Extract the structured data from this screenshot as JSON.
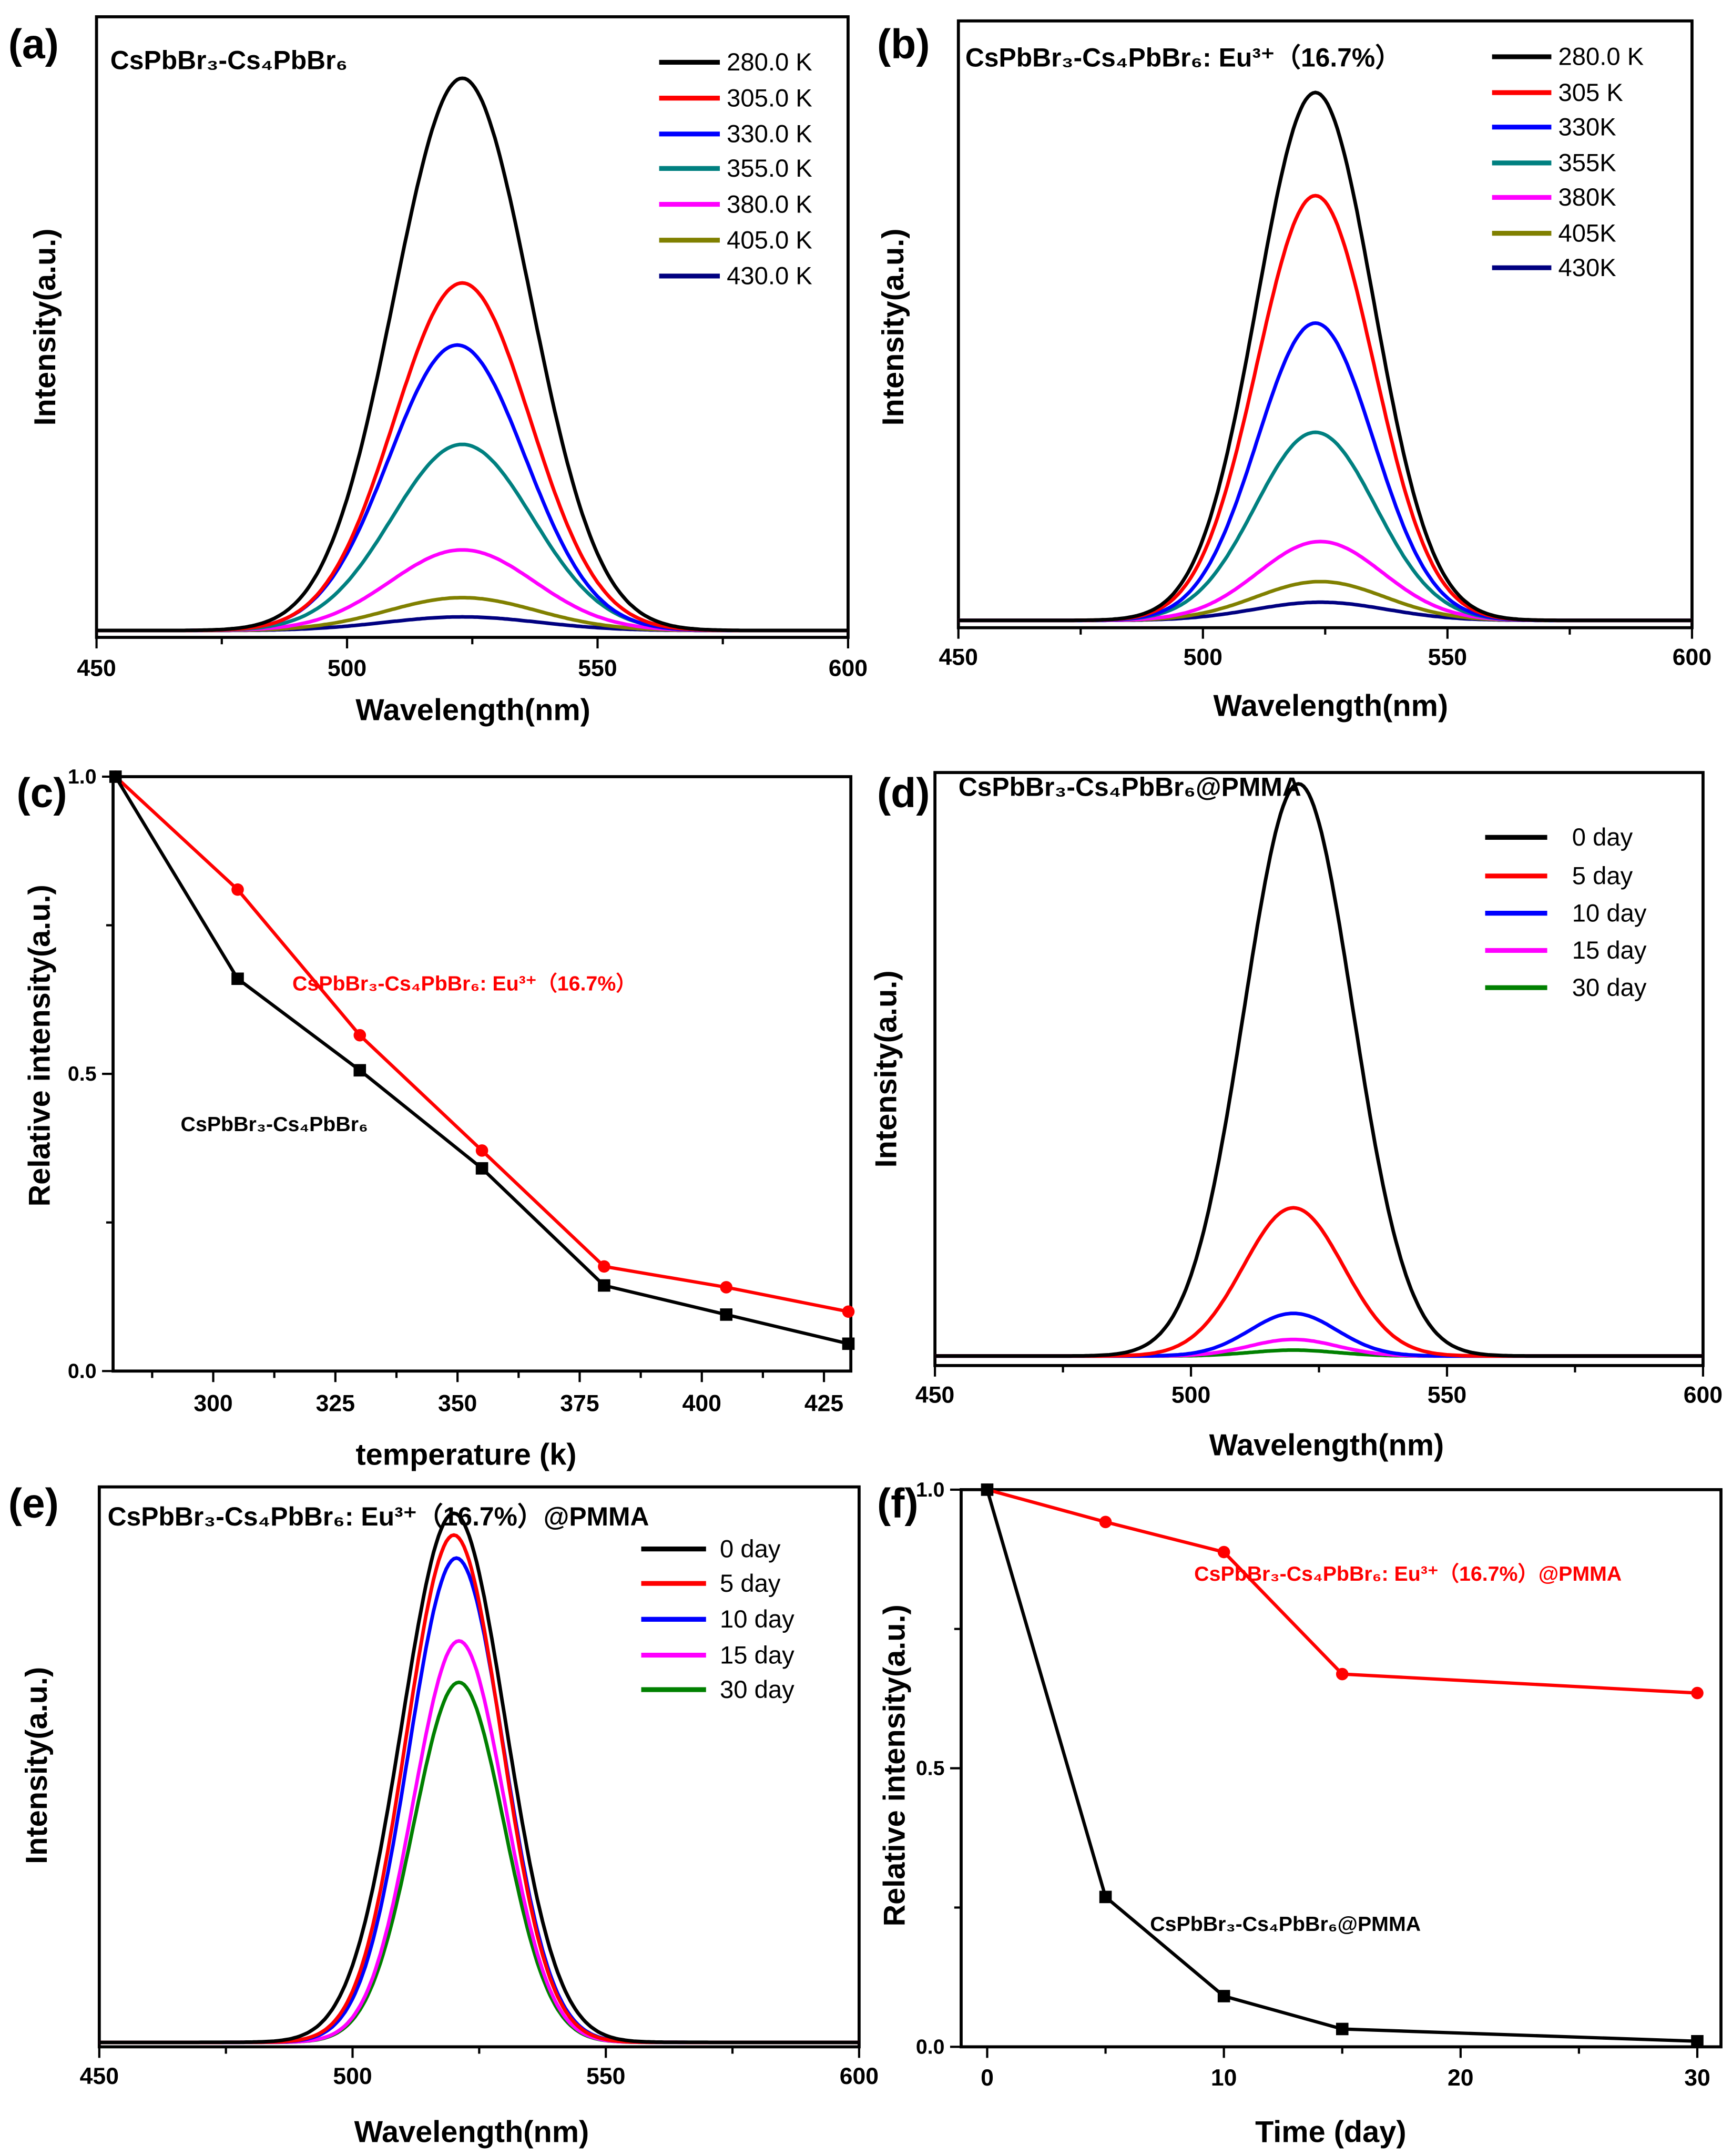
{
  "chart_data": [
    {
      "panel": "(a)",
      "type": "line",
      "title": "CsPbBr₃-Cs₄PbBr₆",
      "xlabel": "Wavelength(nm)",
      "ylabel": "Intensity(a.u.)",
      "xlim": [
        450,
        600
      ],
      "ylim": [
        0,
        1
      ],
      "xticks": [
        450,
        500,
        550,
        600
      ],
      "xminor": 25,
      "yticks": [],
      "series": [
        {
          "name": "280.0 K",
          "color": "#000000",
          "peak_nm": 523,
          "fwhm_nm": 32,
          "peak": 0.89
        },
        {
          "name": "305.0 K",
          "color": "#ff0000",
          "peak_nm": 523,
          "fwhm_nm": 32,
          "peak": 0.56
        },
        {
          "name": "330.0 K",
          "color": "#0000ff",
          "peak_nm": 522,
          "fwhm_nm": 32,
          "peak": 0.46
        },
        {
          "name": "355.0 K",
          "color": "#008080",
          "peak_nm": 523,
          "fwhm_nm": 33,
          "peak": 0.3
        },
        {
          "name": "380.0 K",
          "color": "#ff00ff",
          "peak_nm": 523,
          "fwhm_nm": 34,
          "peak": 0.13
        },
        {
          "name": "405.0 K",
          "color": "#808000",
          "peak_nm": 523,
          "fwhm_nm": 35,
          "peak": 0.053
        },
        {
          "name": "430.0 K",
          "color": "#000080",
          "peak_nm": 523,
          "fwhm_nm": 36,
          "peak": 0.022
        }
      ]
    },
    {
      "panel": "(b)",
      "type": "line",
      "title": "CsPbBr₃-Cs₄PbBr₆: Eu³⁺（16.7%）",
      "xlabel": "Wavelength(nm)",
      "ylabel": "Intensity(a.u.)",
      "xlim": [
        450,
        600
      ],
      "ylim": [
        0,
        1
      ],
      "xticks": [
        450,
        500,
        550,
        600
      ],
      "xminor": 25,
      "yticks": [],
      "series": [
        {
          "name": "280.0 K",
          "color": "#000000",
          "peak_nm": 523,
          "fwhm_nm": 28,
          "peak": 0.87
        },
        {
          "name": "305 K",
          "color": "#ff0000",
          "peak_nm": 523,
          "fwhm_nm": 28,
          "peak": 0.7
        },
        {
          "name": "330K",
          "color": "#0000ff",
          "peak_nm": 523,
          "fwhm_nm": 28,
          "peak": 0.49
        },
        {
          "name": "355K",
          "color": "#008080",
          "peak_nm": 523,
          "fwhm_nm": 29,
          "peak": 0.31
        },
        {
          "name": "380K",
          "color": "#ff00ff",
          "peak_nm": 524,
          "fwhm_nm": 30,
          "peak": 0.13
        },
        {
          "name": "405K",
          "color": "#808000",
          "peak_nm": 524,
          "fwhm_nm": 31,
          "peak": 0.064
        },
        {
          "name": "430K",
          "color": "#000080",
          "peak_nm": 524,
          "fwhm_nm": 32,
          "peak": 0.03
        }
      ]
    },
    {
      "panel": "(c)",
      "type": "line",
      "title": "",
      "xlabel": "temperature (k)",
      "ylabel": "Relative intensity(a.u.)",
      "xlim": [
        279.5,
        430.5
      ],
      "ylim": [
        0,
        1.0
      ],
      "xticks": [
        300,
        325,
        350,
        375,
        400,
        425
      ],
      "xminor": 12.5,
      "yticks": [
        0,
        0.5,
        1.0
      ],
      "yminor": 0.25,
      "x": [
        280,
        305,
        330,
        355,
        380,
        405,
        430
      ],
      "series": [
        {
          "name": "CsPbBr₃-Cs₄PbBr₆: Eu³⁺（16.7%）",
          "color": "#ff0000",
          "marker": "circle",
          "values": [
            1.0,
            0.81,
            0.565,
            0.371,
            0.176,
            0.141,
            0.1
          ]
        },
        {
          "name": "CsPbBr₃-Cs₄PbBr₆",
          "color": "#000000",
          "marker": "square",
          "values": [
            1.0,
            0.66,
            0.506,
            0.341,
            0.144,
            0.095,
            0.046
          ]
        }
      ]
    },
    {
      "panel": "(d)",
      "type": "line",
      "title": "CsPbBr₃-Cs₄PbBr₆@PMMA",
      "xlabel": "Wavelength(nm)",
      "ylabel": "Intensity(a.u.)",
      "xlim": [
        450,
        600
      ],
      "ylim": [
        0,
        1
      ],
      "xticks": [
        450,
        500,
        550,
        600
      ],
      "xminor": 25,
      "yticks": [],
      "series": [
        {
          "name": "0  day",
          "color": "#000000",
          "peak_nm": 521,
          "fwhm_nm": 25,
          "peak": 0.965
        },
        {
          "name": "5  day",
          "color": "#ff0000",
          "peak_nm": 520,
          "fwhm_nm": 23,
          "peak": 0.25
        },
        {
          "name": "10  day",
          "color": "#0000ff",
          "peak_nm": 520,
          "fwhm_nm": 20,
          "peak": 0.072
        },
        {
          "name": "15  day",
          "color": "#ff00ff",
          "peak_nm": 520,
          "fwhm_nm": 20,
          "peak": 0.028
        },
        {
          "name": "30  day",
          "color": "#008000",
          "peak_nm": 520,
          "fwhm_nm": 20,
          "peak": 0.01
        }
      ]
    },
    {
      "panel": "(e)",
      "type": "line",
      "title": "CsPbBr₃-Cs₄PbBr₆: Eu³⁺（16.7%）@PMMA",
      "xlabel": "Wavelength(nm)",
      "ylabel": "Intensity(a.u.)",
      "xlim": [
        450,
        600
      ],
      "ylim": [
        0,
        1
      ],
      "xticks": [
        450,
        500,
        550,
        600
      ],
      "xminor": 25,
      "yticks": [],
      "series": [
        {
          "name": "0  day",
          "color": "#000000",
          "peak_nm": 520,
          "fwhm_nm": 24,
          "peak": 0.945
        },
        {
          "name": "5  day",
          "color": "#ff0000",
          "peak_nm": 520,
          "fwhm_nm": 22,
          "peak": 0.906
        },
        {
          "name": "10  day",
          "color": "#0000ff",
          "peak_nm": 520.5,
          "fwhm_nm": 22,
          "peak": 0.865
        },
        {
          "name": "15  day",
          "color": "#ff00ff",
          "peak_nm": 521,
          "fwhm_nm": 21,
          "peak": 0.717
        },
        {
          "name": "30  day",
          "color": "#008000",
          "peak_nm": 521,
          "fwhm_nm": 21,
          "peak": 0.643
        }
      ]
    },
    {
      "panel": "(f)",
      "type": "line",
      "title": "",
      "xlabel": "Time (day)",
      "ylabel": "Relative intensity(a.u.)",
      "xlim": [
        -1.1,
        31
      ],
      "ylim": [
        0,
        1.0
      ],
      "xticks": [
        0,
        10,
        20,
        30
      ],
      "xminor": 5,
      "yticks": [
        0,
        0.5,
        1.0
      ],
      "yminor": 0.25,
      "x": [
        0,
        5,
        10,
        15,
        30
      ],
      "series": [
        {
          "name": "CsPbBr₃-Cs₄PbBr₆: Eu³⁺（16.7%）@PMMA",
          "color": "#ff0000",
          "marker": "circle",
          "values": [
            1.0,
            0.942,
            0.888,
            0.669,
            0.635
          ]
        },
        {
          "name": "CsPbBr₃-Cs₄PbBr₆@PMMA",
          "color": "#000000",
          "marker": "square",
          "values": [
            1.0,
            0.269,
            0.091,
            0.032,
            0.01
          ]
        }
      ]
    }
  ]
}
